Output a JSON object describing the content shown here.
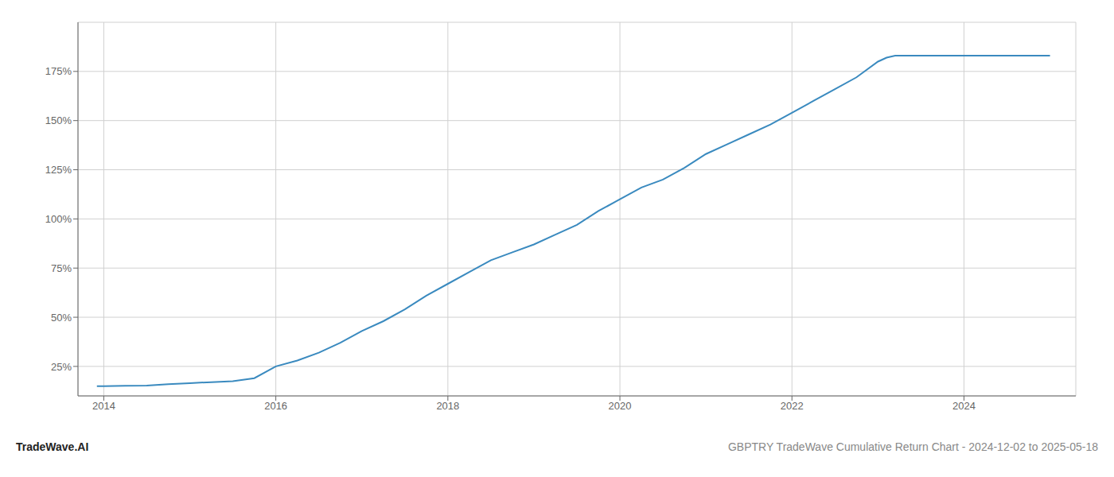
{
  "chart_data": {
    "type": "line",
    "x": [
      2013.92,
      2014.0,
      2014.25,
      2014.5,
      2014.75,
      2015.0,
      2015.25,
      2015.5,
      2015.75,
      2016.0,
      2016.25,
      2016.5,
      2016.75,
      2017.0,
      2017.25,
      2017.5,
      2017.75,
      2018.0,
      2018.25,
      2018.5,
      2018.75,
      2019.0,
      2019.25,
      2019.5,
      2019.75,
      2020.0,
      2020.25,
      2020.5,
      2020.75,
      2021.0,
      2021.25,
      2021.5,
      2021.75,
      2022.0,
      2022.25,
      2022.5,
      2022.75,
      2023.0,
      2023.1,
      2023.2,
      2023.5,
      2024.0,
      2024.5,
      2025.0
    ],
    "values": [
      15.0,
      15.0,
      15.2,
      15.3,
      16.0,
      16.5,
      17.0,
      17.5,
      19.0,
      25.0,
      28.0,
      32.0,
      37.0,
      43.0,
      48.0,
      54.0,
      61.0,
      67.0,
      73.0,
      79.0,
      83.0,
      87.0,
      92.0,
      97.0,
      104.0,
      110.0,
      116.0,
      120.0,
      126.0,
      133.0,
      138.0,
      143.0,
      148.0,
      154.0,
      160.0,
      166.0,
      172.0,
      180.0,
      182.0,
      183.0,
      183.0,
      183.0,
      183.0,
      183.0
    ],
    "color": "#3a8abf",
    "xlim": [
      2013.7,
      2025.3
    ],
    "ylim": [
      10,
      200
    ],
    "xticks": [
      2014,
      2016,
      2018,
      2020,
      2022,
      2024
    ],
    "yticks": [
      {
        "value": 25,
        "label": "25%"
      },
      {
        "value": 50,
        "label": "50%"
      },
      {
        "value": 75,
        "label": "75%"
      },
      {
        "value": 100,
        "label": "100%"
      },
      {
        "value": 125,
        "label": "125%"
      },
      {
        "value": 150,
        "label": "150%"
      },
      {
        "value": 175,
        "label": "175%"
      }
    ],
    "grid": true,
    "annotations": [
      "TradeWave.AI",
      "GBPTRY TradeWave Cumulative Return Chart - 2024-12-02 to 2025-05-18"
    ]
  }
}
